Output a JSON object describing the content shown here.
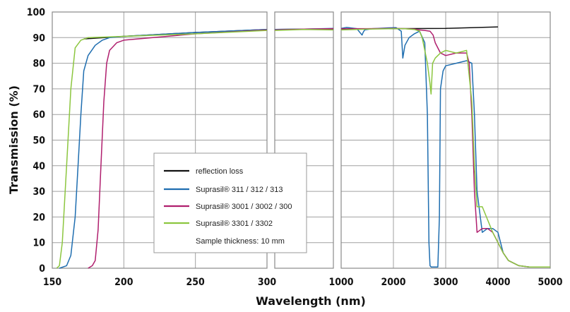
{
  "chart_data": {
    "type": "line",
    "xlabel": "Wavelength (nm)",
    "ylabel": "Transmission (%)",
    "ylim": [
      0,
      100
    ],
    "grid": true,
    "legend_position": "bottom-center",
    "y_ticks": [
      "0",
      "10",
      "20",
      "30",
      "40",
      "50",
      "60",
      "70",
      "80",
      "90",
      "100"
    ],
    "panels": [
      {
        "xlim": [
          150,
          300
        ],
        "x_ticks": [
          150,
          200,
          250,
          300
        ],
        "x_tick_labels": [
          "150",
          "200",
          "250",
          "300"
        ]
      },
      {
        "xlim": [
          300,
          1000
        ],
        "x_ticks": [
          300,
          1000
        ],
        "x_tick_labels": [
          "",
          ""
        ]
      },
      {
        "xlim": [
          1000,
          5000
        ],
        "x_ticks": [
          1000,
          2000,
          3000,
          4000,
          5000
        ],
        "x_tick_labels": [
          "1000",
          "2000",
          "3000",
          "4000",
          "5000"
        ]
      }
    ],
    "series": [
      {
        "name": "reflection loss",
        "color": "#111111",
        "x": [
          172,
          200,
          250,
          300,
          650,
          1000,
          2000,
          3000,
          4000
        ],
        "y": [
          89.5,
          90.5,
          92,
          93.2,
          93.3,
          93.4,
          93.5,
          93.6,
          94.2
        ]
      },
      {
        "name": "Suprasil® 311 / 312 / 313",
        "color": "#1f6eb0",
        "x": [
          155,
          160,
          163,
          166,
          168,
          170,
          172,
          175,
          180,
          185,
          190,
          200,
          250,
          300,
          650,
          1000,
          1100,
          1300,
          1400,
          1420,
          1450,
          1600,
          1900,
          2050,
          2150,
          2180,
          2220,
          2300,
          2400,
          2500,
          2600,
          2650,
          2680,
          2700,
          2720,
          2800,
          2850,
          2880,
          2900,
          2950,
          3000,
          3200,
          3400,
          3500,
          3550,
          3600,
          3700,
          3800,
          3900,
          4000,
          4050,
          4100,
          4200,
          4400,
          4600,
          5000
        ],
        "y": [
          0,
          1,
          5,
          20,
          40,
          60,
          77,
          83,
          87,
          89,
          90,
          90.5,
          92,
          93.2,
          93.3,
          93.6,
          94,
          93.5,
          91,
          92,
          93,
          93.5,
          93.8,
          93.9,
          92.5,
          82,
          87,
          90,
          91.5,
          92.5,
          88,
          60,
          10,
          1,
          0.5,
          0.5,
          0.5,
          20,
          70,
          77,
          79,
          80,
          81,
          80,
          60,
          30,
          14,
          15.5,
          15.5,
          14,
          10,
          6,
          3,
          1,
          0.5,
          0.5
        ]
      },
      {
        "name": "Suprasil® 3001 / 3002 / 300",
        "color": "#b01f6e",
        "x": [
          175,
          178,
          180,
          182,
          184,
          186,
          188,
          190,
          195,
          200,
          250,
          300,
          650,
          1000,
          1500,
          2000,
          2200,
          2400,
          2500,
          2600,
          2700,
          2760,
          2800,
          2900,
          3000,
          3200,
          3400,
          3450,
          3500,
          3550,
          3600,
          3700,
          3800,
          3900,
          4000,
          4100,
          4200,
          4400,
          4600,
          5000
        ],
        "y": [
          0,
          1,
          3,
          15,
          40,
          65,
          80,
          85,
          88,
          89,
          91.5,
          93,
          93.3,
          93.5,
          93.5,
          93.6,
          93.5,
          93.3,
          93,
          92.8,
          92.5,
          91,
          88,
          84,
          83,
          84,
          84,
          80,
          60,
          30,
          14,
          15.5,
          15.5,
          14,
          10,
          6,
          3,
          1,
          0.5,
          0.5
        ]
      },
      {
        "name": "Suprasil® 3301 / 3302",
        "color": "#8cc63f",
        "x": [
          153,
          155,
          157,
          160,
          163,
          166,
          170,
          175,
          200,
          250,
          300,
          650,
          1000,
          1500,
          2000,
          2200,
          2400,
          2500,
          2550,
          2600,
          2650,
          2700,
          2720,
          2750,
          2800,
          2850,
          2900,
          3000,
          3200,
          3300,
          3400,
          3500,
          3550,
          3600,
          3700,
          3800,
          3900,
          4000,
          4100,
          4200,
          4400,
          4600,
          5000
        ],
        "y": [
          0,
          1,
          10,
          40,
          70,
          86,
          89,
          90,
          90.5,
          91.5,
          92.8,
          93.2,
          93,
          93.3,
          93.5,
          93.5,
          93.2,
          92.5,
          90,
          85,
          80,
          72,
          68,
          80,
          82,
          83,
          84,
          85,
          84,
          84.5,
          85,
          65,
          40,
          24,
          24,
          19,
          14,
          10,
          6,
          3,
          1,
          0.5,
          0.5
        ]
      }
    ],
    "annotation": "Sample thickness: 10 mm"
  }
}
